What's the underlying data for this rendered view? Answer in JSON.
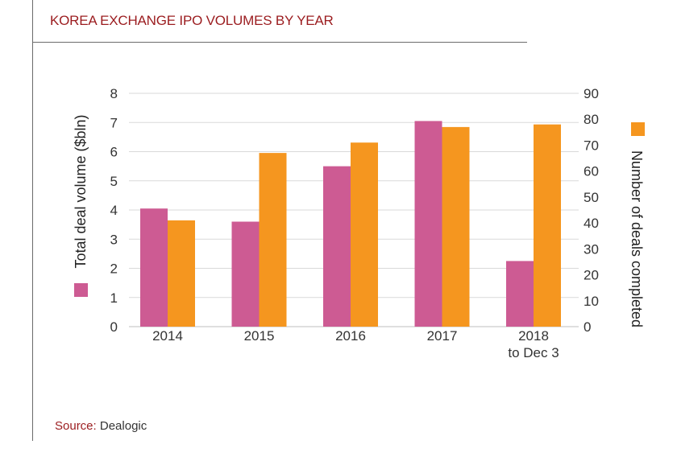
{
  "title": "KOREA EXCHANGE IPO VOLUMES BY YEAR",
  "source": {
    "label": "Source:",
    "value": "Dealogic"
  },
  "colors": {
    "volume": "#cd5b93",
    "deals": "#f5961f",
    "title": "#9b1c1f",
    "grid": "#d9d9d9"
  },
  "chart_data": {
    "type": "bar",
    "categories": [
      [
        "2014"
      ],
      [
        "2015"
      ],
      [
        "2016"
      ],
      [
        "2017"
      ],
      [
        "2018",
        "to Dec 3"
      ]
    ],
    "series": [
      {
        "key": "volume",
        "axis": "left",
        "values": [
          4.05,
          3.6,
          5.5,
          7.05,
          2.25
        ]
      },
      {
        "key": "deals",
        "axis": "right",
        "values": [
          41,
          67,
          71,
          77,
          78
        ]
      }
    ],
    "left_axis": {
      "label": "Total deal volume ($bln)",
      "ylim": [
        0,
        8
      ],
      "ticks": [
        0,
        1,
        2,
        3,
        4,
        5,
        6,
        7,
        8
      ]
    },
    "right_axis": {
      "label": "Number of deals completed",
      "ylim": [
        0,
        90
      ],
      "ticks": [
        0,
        10,
        20,
        30,
        40,
        50,
        60,
        70,
        80,
        90
      ]
    },
    "grid": true,
    "legend": "axis-titles"
  }
}
